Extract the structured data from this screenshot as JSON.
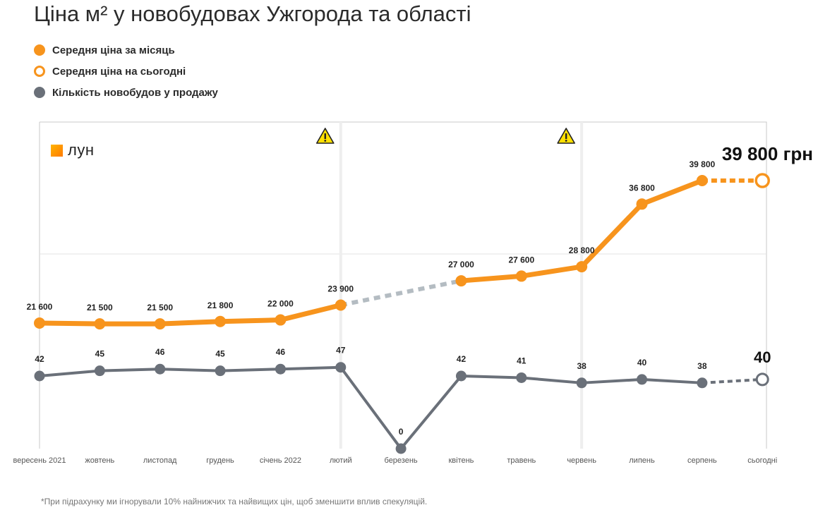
{
  "title": "Ціна м² у новобудовах Ужгорода та області",
  "legend": [
    {
      "label": "Середня ціна за місяць",
      "marker": "filled",
      "color": "#f7941d"
    },
    {
      "label": "Середня ціна на сьогодні",
      "marker": "hollow",
      "color": "#f7941d"
    },
    {
      "label": "Кількість новобудов у продажу",
      "marker": "filled",
      "color": "#6a7079"
    }
  ],
  "logo": {
    "text": "лун",
    "icon": "lun-logo-square-icon"
  },
  "footnote": "*При підрахунку ми ігнорували 10% найнижчих та найвищих цін, щоб зменшити вплив спекуляцій.",
  "warning_icon": "warning-triangle-icon",
  "colors": {
    "price": "#f7941d",
    "count": "#6a7079",
    "gap": "#b4bcc2",
    "grid": "#e3e3e3"
  },
  "chart_data": {
    "type": "line",
    "categories": [
      "вересень 2021",
      "жовтень",
      "листопад",
      "грудень",
      "січень 2022",
      "лютий",
      "березень",
      "квітень",
      "травень",
      "червень",
      "липень",
      "серпень",
      "сьогодні"
    ],
    "series": [
      {
        "name": "Середня ціна за місяць",
        "values": [
          21600,
          21500,
          21500,
          21800,
          22000,
          23900,
          null,
          27000,
          27600,
          28800,
          36800,
          39800,
          39800
        ],
        "labels": [
          "21 600",
          "21 500",
          "21 500",
          "21 800",
          "22 000",
          "23 900",
          "",
          "27 000",
          "27 600",
          "28 800",
          "36 800",
          "39 800",
          ""
        ],
        "today_label": "39 800 грн"
      },
      {
        "name": "Кількість новобудов у продажу",
        "values": [
          42,
          45,
          46,
          45,
          46,
          47,
          0,
          42,
          41,
          38,
          40,
          38,
          40
        ],
        "labels": [
          "42",
          "45",
          "46",
          "45",
          "46",
          "47",
          "0",
          "42",
          "41",
          "38",
          "40",
          "38",
          ""
        ],
        "today_label": "40"
      }
    ],
    "warnings_at": [
      "лютий",
      "червень"
    ],
    "grid": true
  }
}
